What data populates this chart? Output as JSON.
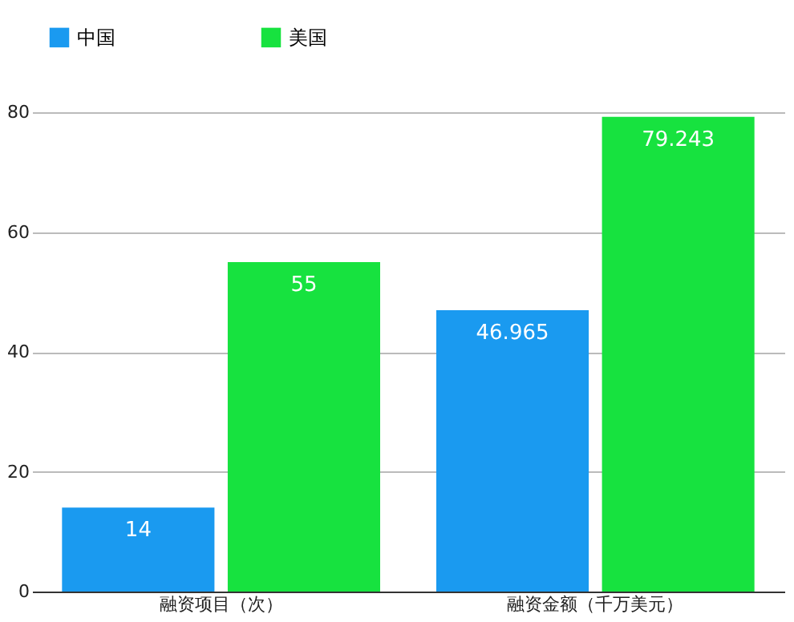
{
  "chart_data": {
    "type": "bar",
    "categories": [
      "融资项目（次）",
      "融资金额（千万美元）"
    ],
    "series": [
      {
        "name": "中国",
        "color": "#1a9af0",
        "values": [
          14,
          46.965
        ]
      },
      {
        "name": "美国",
        "color": "#17e23f",
        "values": [
          55,
          79.243
        ]
      }
    ],
    "ylim": [
      0,
      80
    ],
    "yticks": [
      0,
      20,
      40,
      60,
      80
    ],
    "grid": "y",
    "legend": "top",
    "data_labels": true
  }
}
